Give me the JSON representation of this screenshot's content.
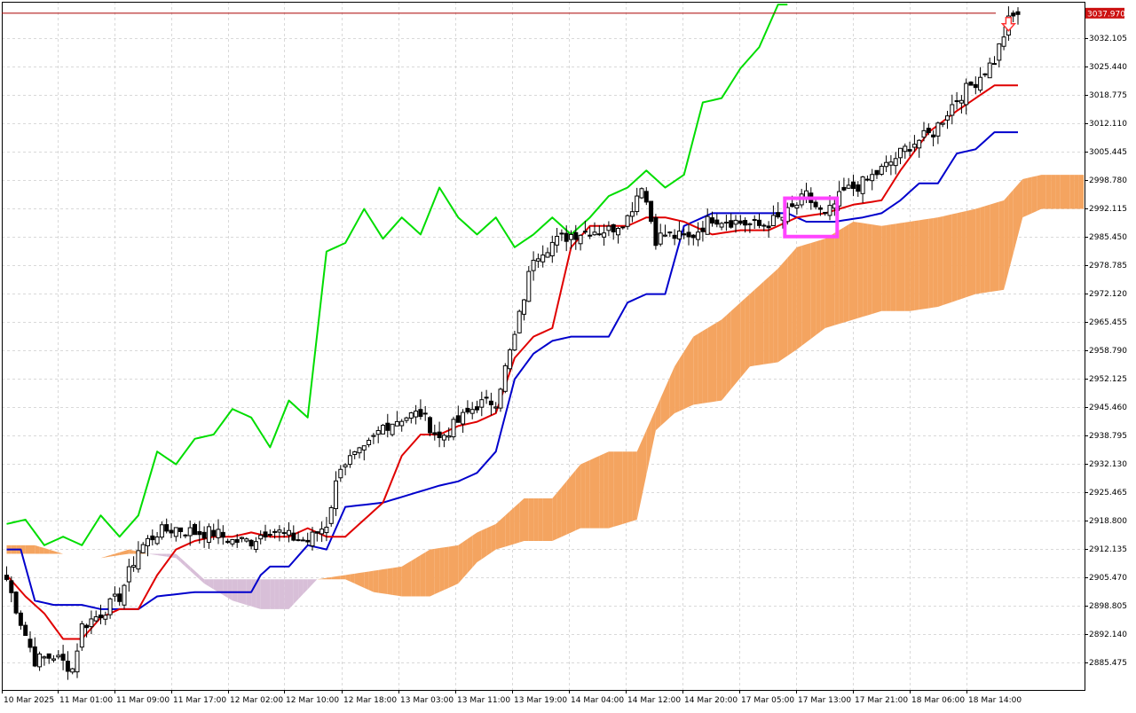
{
  "chart_data": {
    "type": "candlestick",
    "instrument_timeframe": "",
    "current_price": "3037.970",
    "price_axis_labels": [
      "3032.105",
      "3025.440",
      "3018.775",
      "3012.110",
      "3005.445",
      "2998.780",
      "2992.115",
      "2985.450",
      "2978.785",
      "2972.120",
      "2965.455",
      "2958.790",
      "2952.125",
      "2945.460",
      "2938.795",
      "2932.130",
      "2925.465",
      "2918.800",
      "2912.135",
      "2905.470",
      "2898.805",
      "2892.140",
      "2885.475"
    ],
    "ylim": [
      2880.0,
      3040.0
    ],
    "time_axis_labels": [
      "10 Mar 2025",
      "11 Mar 01:00",
      "11 Mar 09:00",
      "11 Mar 17:00",
      "12 Mar 02:00",
      "12 Mar 10:00",
      "12 Mar 18:00",
      "13 Mar 03:00",
      "13 Mar 11:00",
      "13 Mar 19:00",
      "14 Mar 04:00",
      "14 Mar 12:00",
      "14 Mar 20:00",
      "17 Mar 05:00",
      "17 Mar 13:00",
      "17 Mar 21:00",
      "18 Mar 06:00",
      "18 Mar 14:00"
    ],
    "grid": true,
    "colors": {
      "background": "#ffffff",
      "grid": "#d9d9d9",
      "axis": "#000000",
      "candle_up_fill": "#ffffff",
      "candle_down_fill": "#000000",
      "tenkan_sen": "#e00000",
      "kijun_sen": "#0000cc",
      "chikou_span": "#00dd00",
      "kumo_bullish": "#f4a460",
      "kumo_bearish": "#d8bfd8",
      "highlight_box": "#ff44ff",
      "signal_arrow": "#ff3333",
      "price_label_bg": "#cc1111",
      "price_line": "#aa0000"
    },
    "indicators": [
      "tenkan_sen",
      "kijun_sen",
      "chikou_span",
      "senkou_span_a",
      "senkou_span_b"
    ],
    "annotations": [
      {
        "type": "highlight-box",
        "around_bar_range": [
          166,
          176
        ]
      },
      {
        "type": "sell-arrow",
        "at_bar": 213
      }
    ]
  }
}
